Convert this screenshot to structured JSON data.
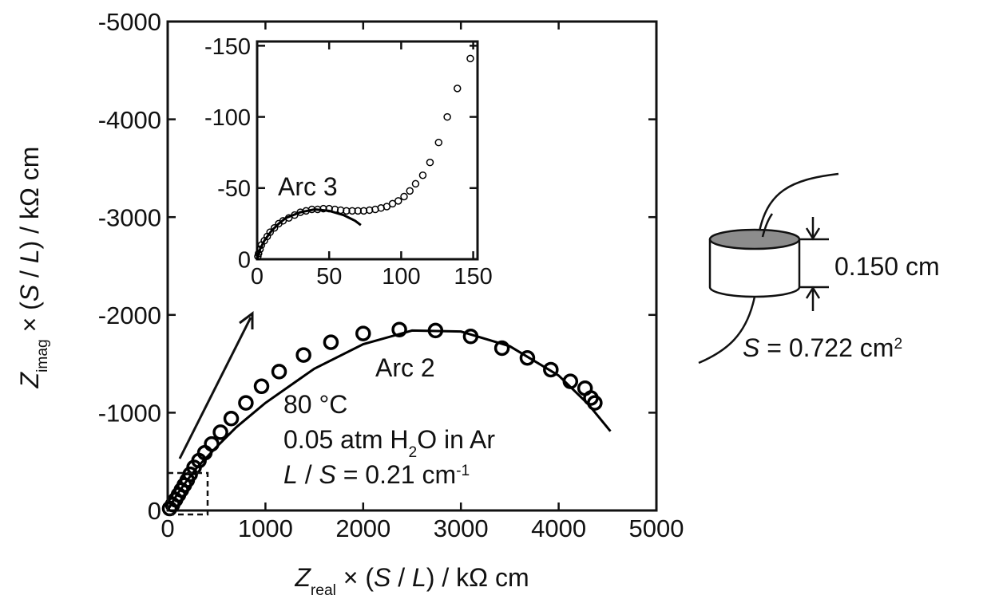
{
  "chart_data": [
    {
      "type": "scatter",
      "xlim": [
        0,
        5000
      ],
      "xticks": [
        0,
        1000,
        2000,
        3000,
        4000,
        5000
      ],
      "ylim": [
        0,
        -5000
      ],
      "yticks": [
        0,
        -1000,
        -2000,
        -3000,
        -4000,
        -5000
      ],
      "xlabel": [
        {
          "text": "Z",
          "style": "italic"
        },
        {
          "text": "real",
          "style": "sub"
        },
        {
          "text": " × (",
          "style": "normal"
        },
        {
          "text": "S",
          "style": "italic"
        },
        {
          "text": " / ",
          "style": "normal"
        },
        {
          "text": "L",
          "style": "italic"
        },
        {
          "text": ") / kΩ cm",
          "style": "normal"
        }
      ],
      "ylabel": [
        {
          "text": "Z",
          "style": "italic"
        },
        {
          "text": "imag",
          "style": "sub"
        },
        {
          "text": " × (",
          "style": "normal"
        },
        {
          "text": "S",
          "style": "italic"
        },
        {
          "text": " / ",
          "style": "normal"
        },
        {
          "text": "L",
          "style": "italic"
        },
        {
          "text": ") / kΩ cm",
          "style": "normal"
        }
      ],
      "series": [
        {
          "marker": "circle",
          "color": "#000000",
          "x": [
            20,
            50,
            80,
            110,
            140,
            170,
            200,
            230,
            270,
            320,
            380,
            450,
            540,
            650,
            800,
            960,
            1140,
            1390,
            1670,
            2000,
            2370,
            2740,
            3100,
            3420,
            3680,
            3920,
            4120,
            4270,
            4330,
            4370
          ],
          "values": [
            -20,
            -60,
            -110,
            -160,
            -210,
            -260,
            -310,
            -370,
            -440,
            -510,
            -590,
            -680,
            -800,
            -940,
            -1100,
            -1270,
            -1420,
            -1590,
            -1720,
            -1810,
            -1850,
            -1840,
            -1780,
            -1660,
            -1560,
            -1440,
            -1320,
            -1250,
            -1150,
            -1100
          ]
        },
        {
          "marker": "line",
          "color": "#000000",
          "x": [
            0,
            50,
            100,
            200,
            300,
            500,
            700,
            1000,
            1500,
            2000,
            2500,
            3000,
            3500,
            4000,
            4300,
            4530
          ],
          "values": [
            0,
            -90,
            -170,
            -310,
            -440,
            -650,
            -850,
            -1100,
            -1450,
            -1700,
            -1840,
            -1830,
            -1680,
            -1380,
            -1090,
            -810
          ]
        }
      ],
      "annotations": [
        [
          {
            "text": "Arc 2",
            "style": "normal"
          }
        ],
        [
          {
            "text": "80 °C",
            "style": "normal"
          }
        ],
        [
          {
            "text": "0.05 atm H",
            "style": "normal"
          },
          {
            "text": "2",
            "style": "sub"
          },
          {
            "text": "O in Ar",
            "style": "normal"
          }
        ],
        [
          {
            "text": "L",
            "style": "italic"
          },
          {
            "text": " / ",
            "style": "normal"
          },
          {
            "text": "S",
            "style": "italic"
          },
          {
            "text": " = 0.21 cm",
            "style": "normal"
          },
          {
            "text": "-1",
            "style": "sup"
          }
        ]
      ]
    },
    {
      "type": "scatter",
      "xlim": [
        0,
        153
      ],
      "xticks": [
        0,
        50,
        100,
        150
      ],
      "ylim": [
        0,
        -153
      ],
      "yticks": [
        0,
        -50,
        -100,
        -150
      ],
      "series": [
        {
          "marker": "circle",
          "color": "#000000",
          "x": [
            0.5,
            1,
            2,
            3,
            5,
            7,
            9,
            12,
            15,
            18,
            22,
            26,
            30,
            34,
            38,
            42,
            46,
            50,
            54,
            58,
            62,
            66,
            70,
            74,
            78,
            82,
            86,
            90,
            94,
            98,
            102,
            106,
            110,
            115,
            120,
            126,
            132,
            139,
            148
          ],
          "values": [
            -2,
            -4,
            -7,
            -10,
            -13,
            -16,
            -19,
            -22,
            -25,
            -27,
            -29,
            -31,
            -33,
            -34,
            -35,
            -35,
            -35.5,
            -35.5,
            -35,
            -34.5,
            -34,
            -34,
            -34,
            -34,
            -34.5,
            -35,
            -36,
            -37,
            -39,
            -41,
            -44,
            -48,
            -53,
            -59,
            -68,
            -82,
            -100,
            -120,
            -141
          ]
        },
        {
          "marker": "line",
          "color": "#000000",
          "x": [
            0,
            2,
            5,
            10,
            15,
            20,
            30,
            40,
            50,
            60,
            68,
            72
          ],
          "values": [
            0,
            -7,
            -13,
            -20,
            -25,
            -29,
            -33,
            -35,
            -34,
            -31,
            -27,
            -24
          ]
        }
      ],
      "annotations": [
        [
          {
            "text": "Arc 3",
            "style": "normal"
          }
        ]
      ]
    }
  ],
  "diagram": {
    "thickness_label": "0.150 cm",
    "area_label": [
      {
        "text": "S",
        "style": "italic"
      },
      {
        "text": " = 0.722 cm",
        "style": "normal"
      },
      {
        "text": "2",
        "style": "sup"
      }
    ]
  }
}
